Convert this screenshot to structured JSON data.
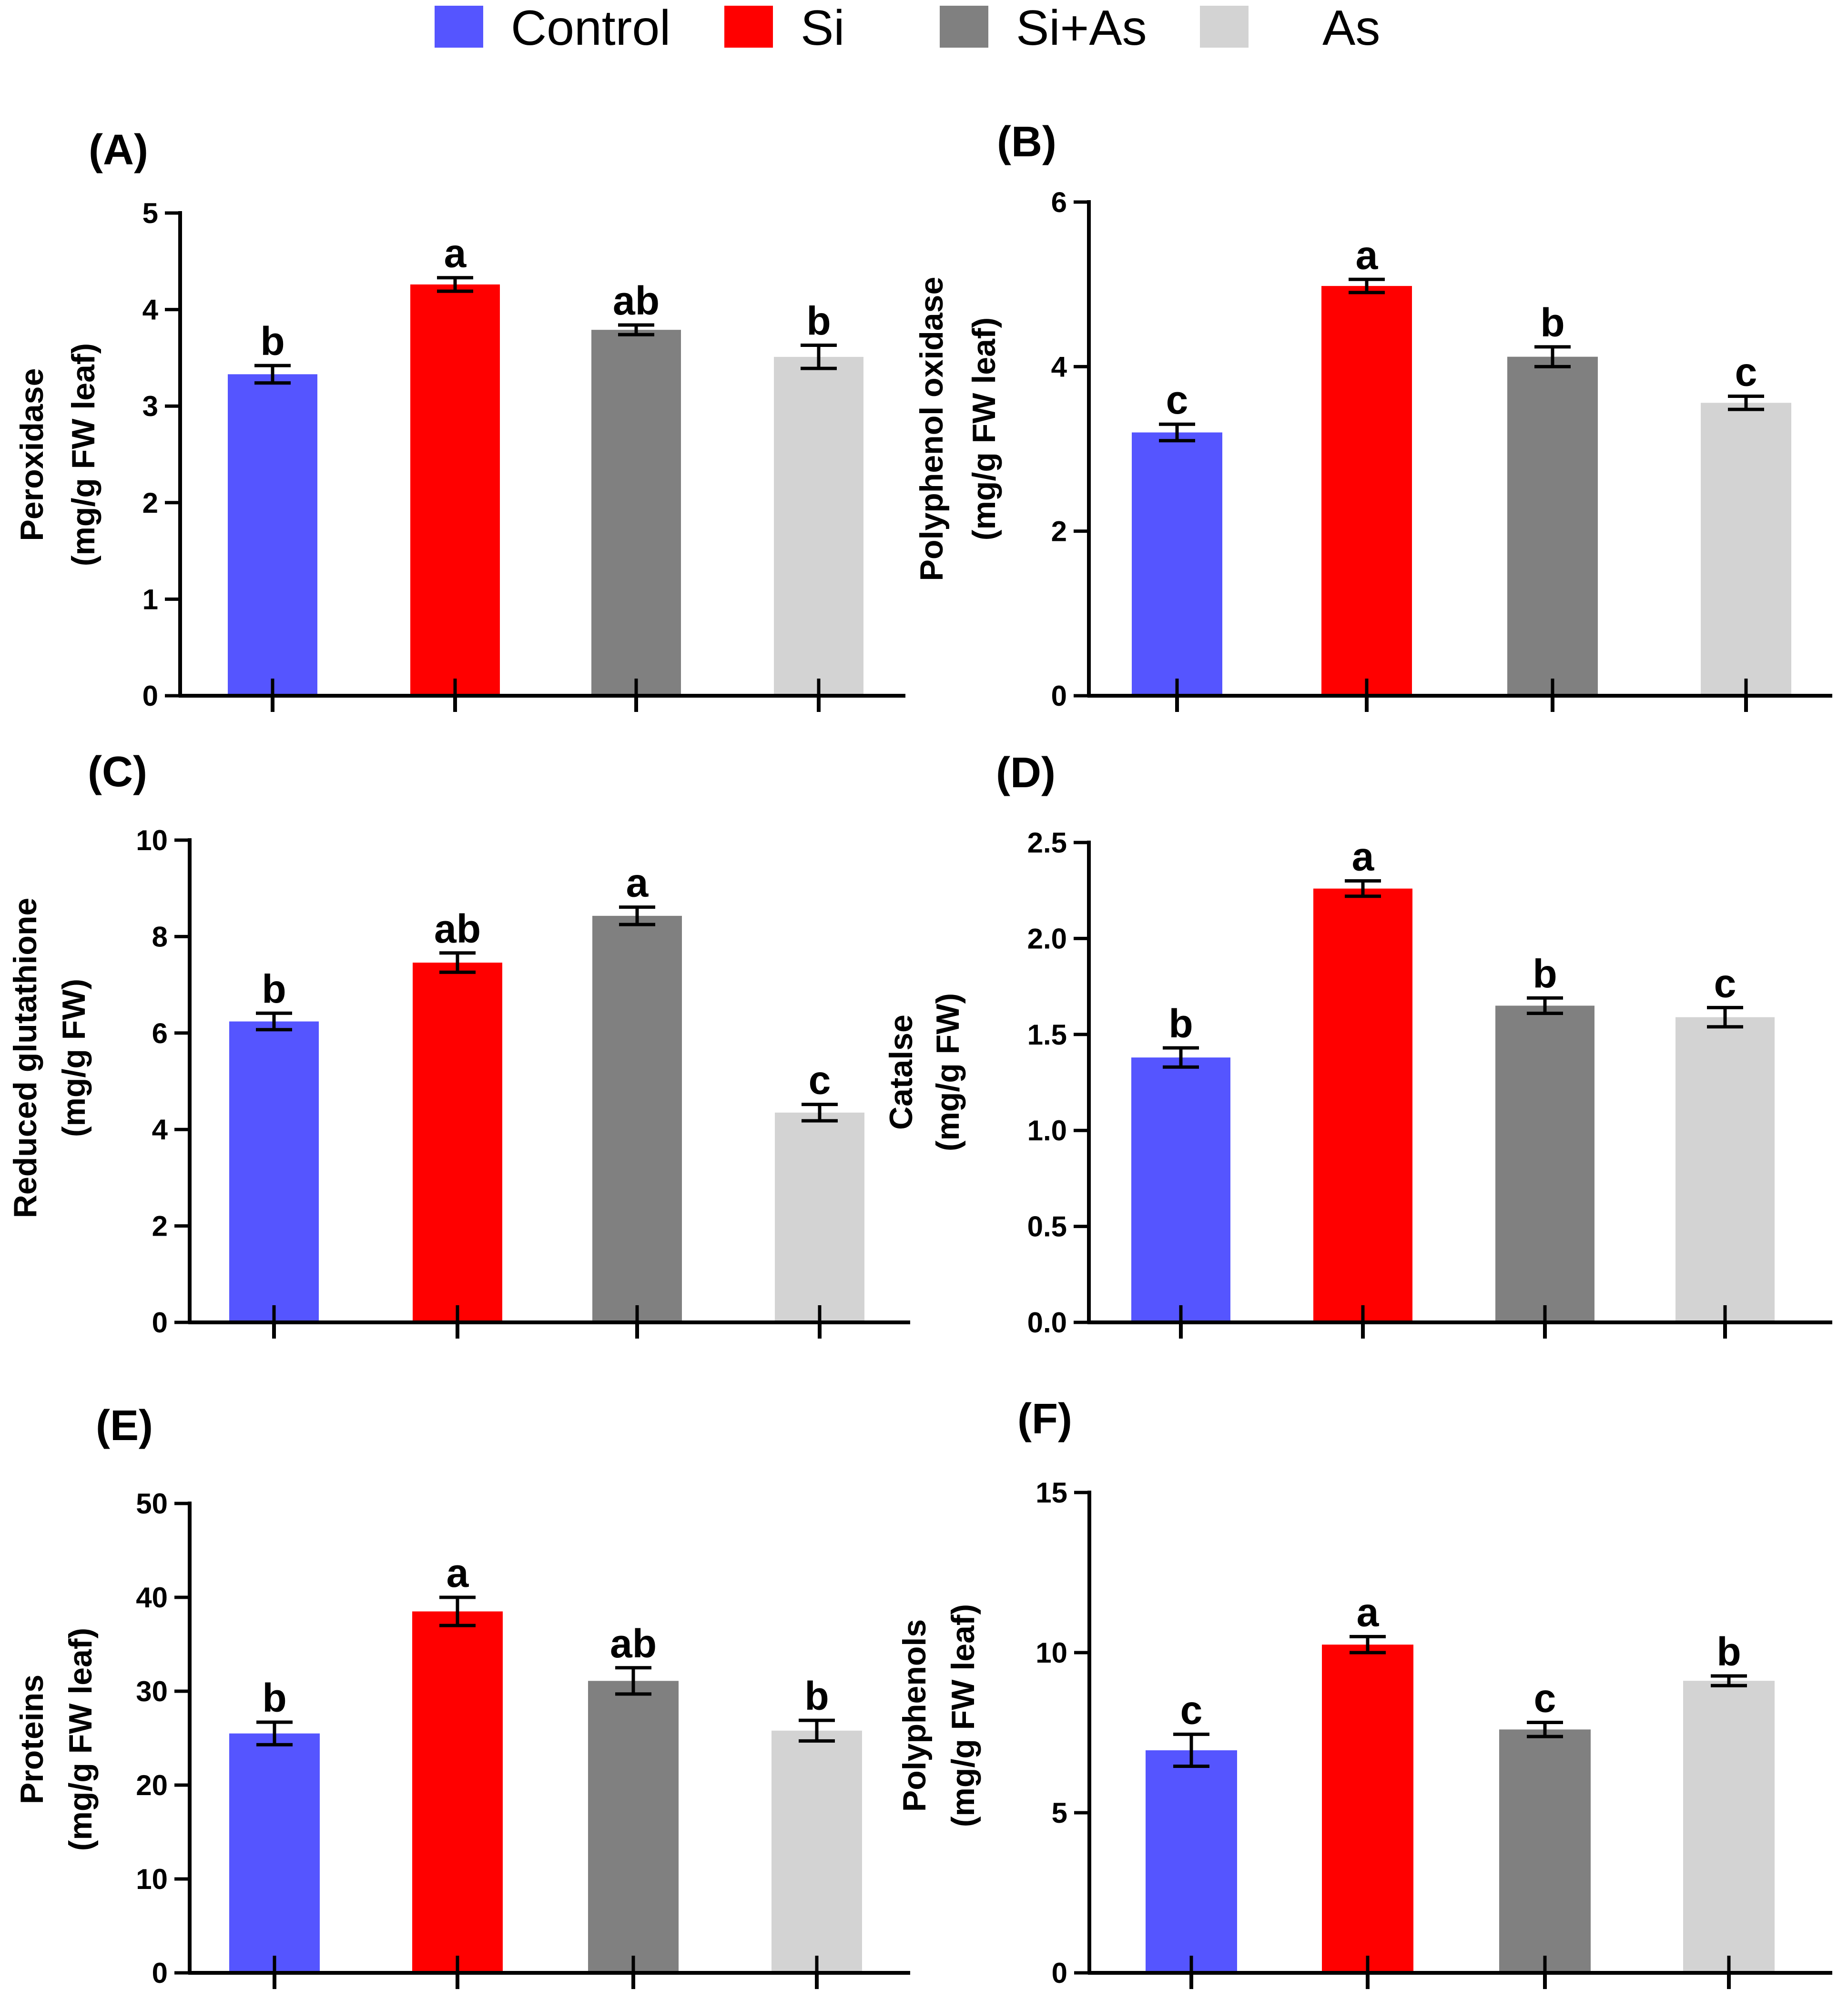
{
  "legend": {
    "items": [
      {
        "name": "Control",
        "color": "#5555ff"
      },
      {
        "name": "Si",
        "color": "#ff0000"
      },
      {
        "name": "Si+As",
        "color": "#808080"
      },
      {
        "name": "As",
        "color": "#d3d3d3"
      }
    ]
  },
  "chart_data": [
    {
      "type": "bar",
      "panel": "(A)",
      "categories": [
        "Control",
        "Si",
        "Si+As",
        "As"
      ],
      "values": [
        3.33,
        4.26,
        3.79,
        3.51
      ],
      "errors": [
        0.09,
        0.07,
        0.05,
        0.12
      ],
      "significance": [
        "b",
        "a",
        "ab",
        "b"
      ],
      "ylabel_lines": [
        "Peroxidase",
        "(mg/g FW leaf)"
      ],
      "ylim": [
        0,
        5
      ],
      "yticks": [
        0,
        1,
        2,
        3,
        4,
        5
      ],
      "ytick_labels": [
        "0",
        "1",
        "2",
        "3",
        "4",
        "5"
      ]
    },
    {
      "type": "bar",
      "panel": "(B)",
      "categories": [
        "Control",
        "Si",
        "Si+As",
        "As"
      ],
      "values": [
        3.2,
        4.98,
        4.12,
        3.56
      ],
      "errors": [
        0.1,
        0.08,
        0.12,
        0.08
      ],
      "significance": [
        "c",
        "a",
        "b",
        "c"
      ],
      "ylabel_lines": [
        "Polyphenol oxidase",
        "(mg/g FW leaf)"
      ],
      "ylim": [
        0,
        6
      ],
      "yticks": [
        0,
        2,
        4,
        6
      ],
      "ytick_labels": [
        "0",
        "2",
        "4",
        "6"
      ]
    },
    {
      "type": "bar",
      "panel": "(C)",
      "categories": [
        "Control",
        "Si",
        "Si+As",
        "As"
      ],
      "values": [
        6.24,
        7.46,
        8.43,
        4.35
      ],
      "errors": [
        0.17,
        0.2,
        0.18,
        0.17
      ],
      "significance": [
        "b",
        "ab",
        "a",
        "c"
      ],
      "ylabel_lines": [
        "Reduced glutathione",
        "(mg/g FW)"
      ],
      "ylim": [
        0,
        10
      ],
      "yticks": [
        0,
        2,
        4,
        6,
        8,
        10
      ],
      "ytick_labels": [
        "0",
        "2",
        "4",
        "6",
        "8",
        "10"
      ]
    },
    {
      "type": "bar",
      "panel": "(D)",
      "categories": [
        "Control",
        "Si",
        "Si+As",
        "As"
      ],
      "values": [
        1.38,
        2.26,
        1.65,
        1.59
      ],
      "errors": [
        0.05,
        0.04,
        0.04,
        0.05
      ],
      "significance": [
        "b",
        "a",
        "b",
        "c"
      ],
      "ylabel_lines": [
        "Catalse",
        "(mg/g  FW)"
      ],
      "ylim": [
        0,
        2.5
      ],
      "yticks": [
        0,
        0.5,
        1,
        1.5,
        2,
        2.5
      ],
      "ytick_labels": [
        "0.0",
        "0.5",
        "1.0",
        "1.5",
        "2.0",
        "2.5"
      ]
    },
    {
      "type": "bar",
      "panel": "(E)",
      "categories": [
        "Control",
        "Si",
        "Si+As",
        "As"
      ],
      "values": [
        25.5,
        38.5,
        31.1,
        25.8
      ],
      "errors": [
        1.2,
        1.5,
        1.4,
        1.1
      ],
      "significance": [
        "b",
        "a",
        "ab",
        "b"
      ],
      "ylabel_lines": [
        "Proteins",
        "(mg/g FW leaf)"
      ],
      "ylim": [
        0,
        50
      ],
      "yticks": [
        0,
        10,
        20,
        30,
        40,
        50
      ],
      "ytick_labels": [
        "0",
        "10",
        "20",
        "30",
        "40",
        "50"
      ]
    },
    {
      "type": "bar",
      "panel": "(F)",
      "categories": [
        "Control",
        "Si",
        "Si+As",
        "As"
      ],
      "values": [
        6.95,
        10.25,
        7.6,
        9.12
      ],
      "errors": [
        0.5,
        0.25,
        0.22,
        0.15
      ],
      "significance": [
        "c",
        "a",
        "c",
        "b"
      ],
      "ylabel_lines": [
        "Polyphenols",
        "(mg/g FW leaf)"
      ],
      "ylim": [
        0,
        15
      ],
      "yticks": [
        0,
        5,
        10,
        15
      ],
      "ytick_labels": [
        "0",
        "5",
        "10",
        "15"
      ]
    }
  ]
}
